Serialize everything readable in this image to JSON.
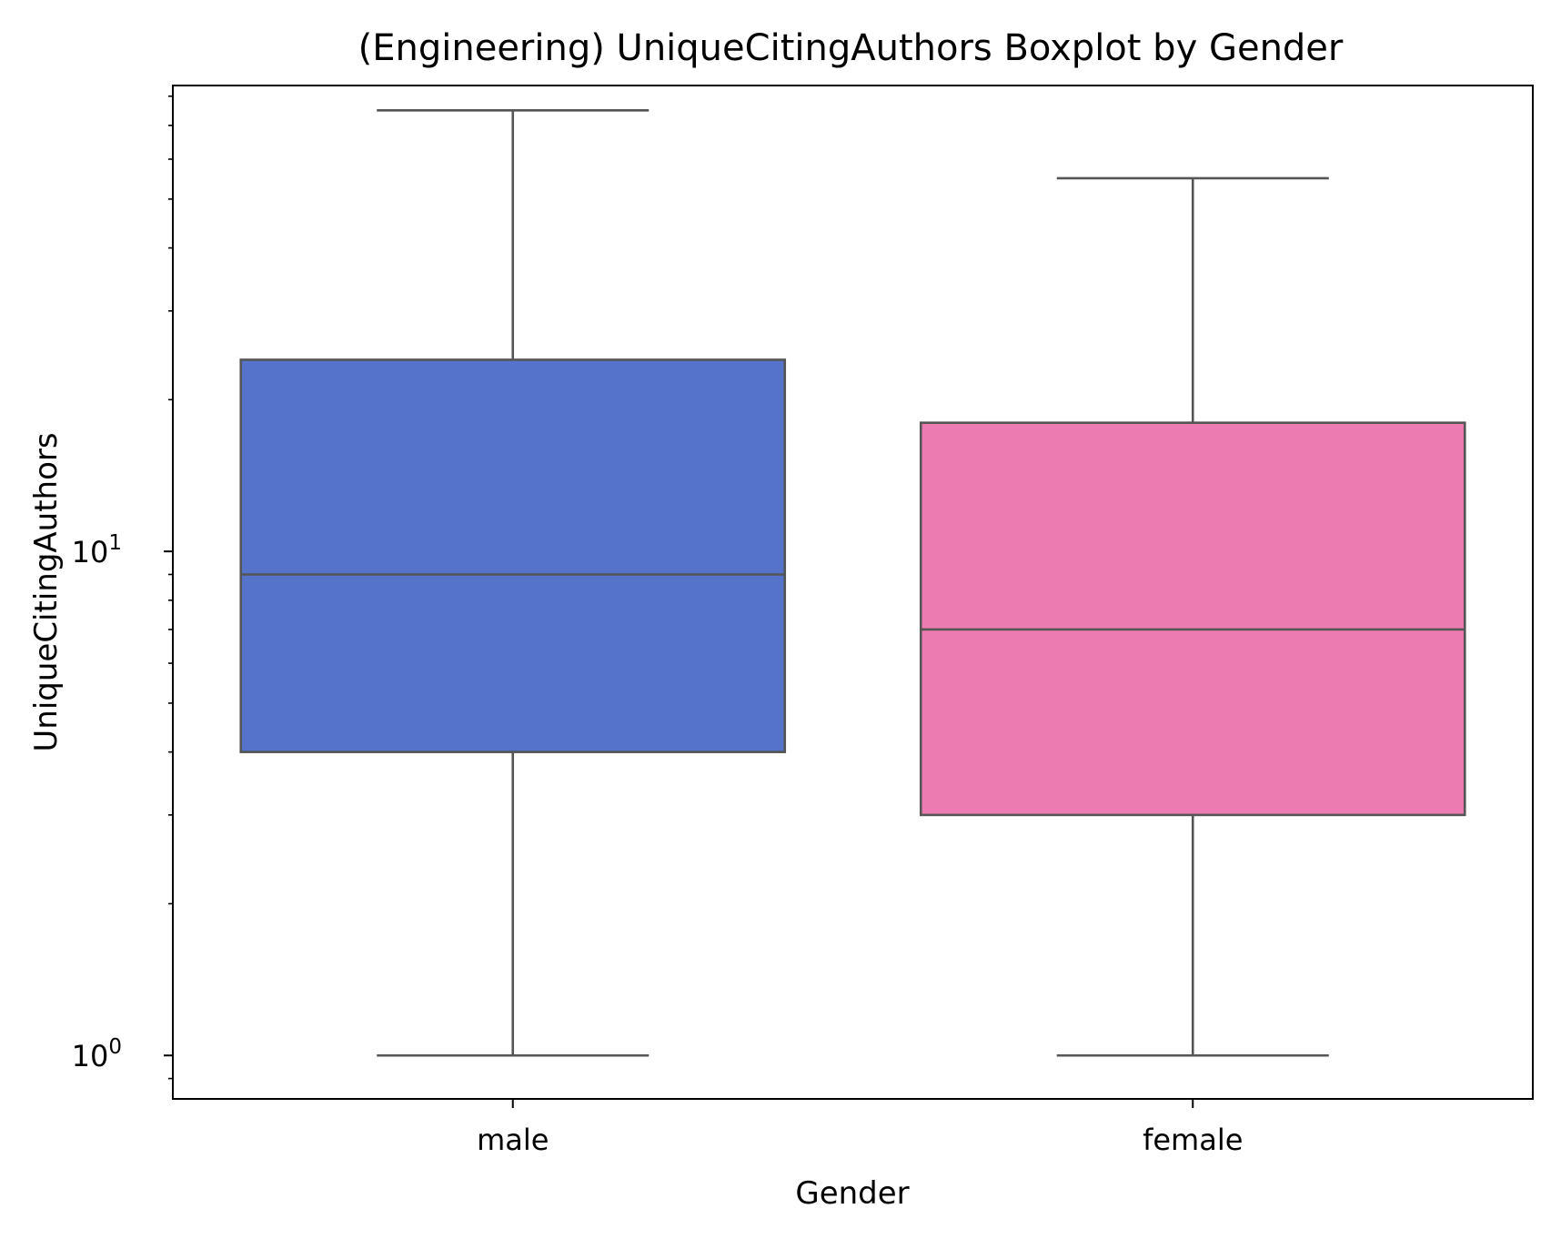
{
  "chart_data": {
    "type": "box",
    "title": "(Engineering) UniqueCitingAuthors Boxplot by Gender",
    "xlabel": "Gender",
    "ylabel": "UniqueCitingAuthors",
    "yscale": "log",
    "ylim": [
      0.82,
      84
    ],
    "yticks": [
      {
        "value": 1,
        "base": "10",
        "exp": "0"
      },
      {
        "value": 10,
        "base": "10",
        "exp": "1"
      }
    ],
    "categories": [
      "male",
      "female"
    ],
    "boxes": [
      {
        "label": "male",
        "whisker_low": 1,
        "q1": 4,
        "median": 9,
        "q3": 24,
        "whisker_high": 75,
        "color": "#5573CB"
      },
      {
        "label": "female",
        "whisker_low": 1,
        "q1": 3,
        "median": 7,
        "q3": 18,
        "whisker_high": 55,
        "color": "#EB7BB1"
      }
    ],
    "line_color": "#555555",
    "grid": false,
    "legend": "none"
  }
}
